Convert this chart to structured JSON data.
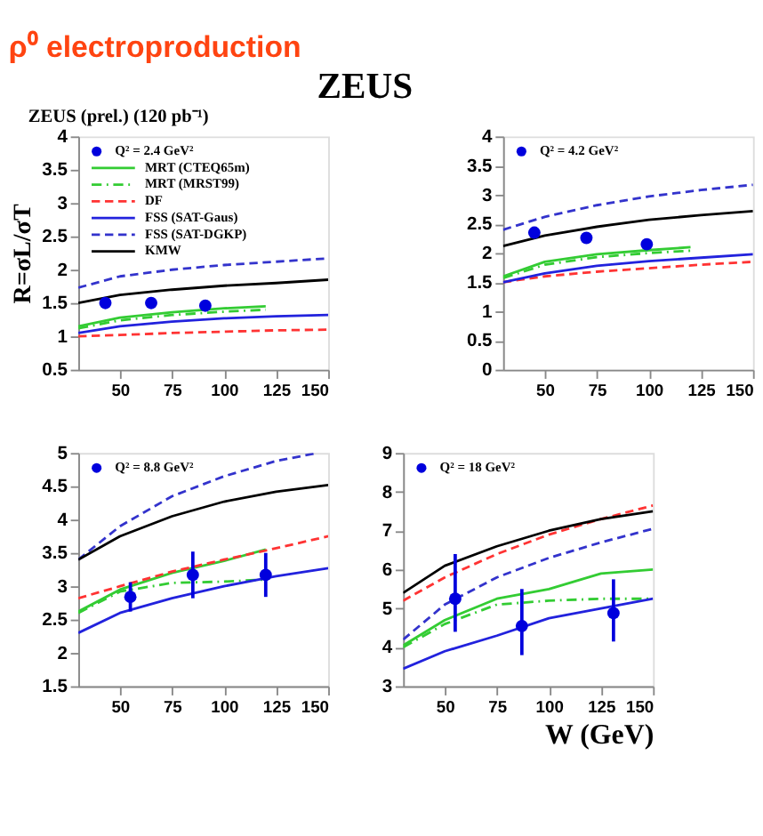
{
  "chart_data": [
    {
      "type": "line",
      "title": "ρ⁰ electroproduction",
      "annotations": [
        "ZEUS (prel.) (120 pb⁻¹)",
        "ZEUS"
      ],
      "ylabel": "R=σL/σT",
      "xlim": [
        30,
        150
      ],
      "xticks": [
        50,
        75,
        100,
        125,
        150
      ],
      "ylim": [
        0.5,
        4
      ],
      "yticks": [
        0.5,
        1,
        1.5,
        2,
        2.5,
        3,
        3.5,
        4
      ],
      "legend": "top left",
      "series": [
        {
          "name": "Q² = 2.4 GeV²",
          "type": "scatter",
          "marker": "circle",
          "color": "#0000dd",
          "x": [
            43,
            65,
            91
          ],
          "values": [
            1.5,
            1.5,
            1.46
          ]
        },
        {
          "name": "MRT (CTEQ65m)",
          "color": "#33cc33",
          "line_style": "solid",
          "x": [
            30,
            50,
            75,
            100,
            120
          ],
          "values": [
            1.15,
            1.28,
            1.36,
            1.42,
            1.45
          ]
        },
        {
          "name": "MRT (MRST99)",
          "color": "#33cc33",
          "line_style": "dotted",
          "x": [
            30,
            50,
            75,
            100,
            120
          ],
          "values": [
            1.12,
            1.24,
            1.32,
            1.37,
            1.4
          ]
        },
        {
          "name": "DF",
          "color": "#ff3333",
          "line_style": "dashed",
          "x": [
            30,
            50,
            75,
            100,
            125,
            150
          ],
          "values": [
            1.0,
            1.02,
            1.05,
            1.07,
            1.09,
            1.1
          ]
        },
        {
          "name": "FSS (SAT-Gaus)",
          "color": "#2222dd",
          "line_style": "solid",
          "x": [
            30,
            50,
            75,
            100,
            125,
            150
          ],
          "values": [
            1.05,
            1.15,
            1.22,
            1.27,
            1.3,
            1.32
          ]
        },
        {
          "name": "FSS (SAT-DGKP)",
          "color": "#3333cc",
          "line_style": "dashed",
          "x": [
            30,
            50,
            75,
            100,
            125,
            150
          ],
          "values": [
            1.73,
            1.9,
            2.0,
            2.07,
            2.12,
            2.17
          ]
        },
        {
          "name": "KMW",
          "color": "#000000",
          "line_style": "solid",
          "x": [
            30,
            50,
            75,
            100,
            125,
            150
          ],
          "values": [
            1.5,
            1.62,
            1.7,
            1.76,
            1.8,
            1.85
          ]
        }
      ]
    },
    {
      "type": "line",
      "xlim": [
        30,
        150
      ],
      "xticks": [
        50,
        75,
        100,
        125,
        150
      ],
      "ylim": [
        0,
        4
      ],
      "yticks": [
        0,
        0.5,
        1,
        1.5,
        2,
        2.5,
        3,
        3.5,
        4
      ],
      "legend": "top left",
      "series": [
        {
          "name": "Q² = 4.2 GeV²",
          "type": "scatter",
          "marker": "circle",
          "color": "#0000dd",
          "x": [
            45,
            70,
            99
          ],
          "values": [
            2.35,
            2.26,
            2.15
          ]
        },
        {
          "color": "#33cc33",
          "line_style": "solid",
          "x": [
            30,
            50,
            75,
            100,
            120
          ],
          "values": [
            1.6,
            1.85,
            1.98,
            2.05,
            2.1
          ]
        },
        {
          "color": "#33cc33",
          "line_style": "dotted",
          "x": [
            30,
            50,
            75,
            100,
            120
          ],
          "values": [
            1.57,
            1.8,
            1.93,
            2.0,
            2.04
          ]
        },
        {
          "color": "#ff3333",
          "line_style": "dashed",
          "x": [
            30,
            50,
            75,
            100,
            125,
            150
          ],
          "values": [
            1.5,
            1.6,
            1.68,
            1.74,
            1.8,
            1.85
          ]
        },
        {
          "color": "#2222dd",
          "line_style": "solid",
          "x": [
            30,
            50,
            75,
            100,
            125,
            150
          ],
          "values": [
            1.5,
            1.65,
            1.78,
            1.86,
            1.92,
            1.98
          ]
        },
        {
          "color": "#3333cc",
          "line_style": "dashed",
          "x": [
            30,
            50,
            75,
            100,
            125,
            150
          ],
          "values": [
            2.4,
            2.62,
            2.82,
            2.97,
            3.08,
            3.17
          ]
        },
        {
          "color": "#000000",
          "line_style": "solid",
          "x": [
            30,
            50,
            75,
            100,
            125,
            150
          ],
          "values": [
            2.12,
            2.3,
            2.45,
            2.57,
            2.65,
            2.72
          ]
        }
      ]
    },
    {
      "type": "line",
      "xlim": [
        30,
        150
      ],
      "xticks": [
        50,
        75,
        100,
        125,
        150
      ],
      "ylim": [
        1.5,
        5
      ],
      "yticks": [
        1.5,
        2,
        2.5,
        3,
        3.5,
        4,
        4.5,
        5
      ],
      "legend": "top left",
      "series": [
        {
          "name": "Q² = 8.8 GeV²",
          "type": "scatter",
          "marker": "circle",
          "color": "#0000dd",
          "x": [
            55,
            85,
            120
          ],
          "values": [
            2.84,
            3.17,
            3.17
          ],
          "errors": [
            0.22,
            0.35,
            0.33
          ]
        },
        {
          "color": "#33cc33",
          "line_style": "solid",
          "x": [
            30,
            50,
            75,
            100,
            120
          ],
          "values": [
            2.62,
            2.95,
            3.2,
            3.38,
            3.55
          ]
        },
        {
          "color": "#33cc33",
          "line_style": "dotted",
          "x": [
            30,
            50,
            75,
            100,
            120
          ],
          "values": [
            2.6,
            2.92,
            3.05,
            3.07,
            3.1
          ]
        },
        {
          "color": "#ff3333",
          "line_style": "dashed",
          "x": [
            30,
            50,
            75,
            100,
            125,
            150
          ],
          "values": [
            2.82,
            3.0,
            3.22,
            3.4,
            3.57,
            3.75
          ]
        },
        {
          "color": "#2222dd",
          "line_style": "solid",
          "x": [
            30,
            50,
            75,
            100,
            125,
            150
          ],
          "values": [
            2.3,
            2.6,
            2.82,
            3.0,
            3.15,
            3.27
          ]
        },
        {
          "color": "#3333cc",
          "line_style": "dashed",
          "x": [
            30,
            50,
            75,
            100,
            125,
            145
          ],
          "values": [
            3.4,
            3.9,
            4.35,
            4.65,
            4.88,
            5.0
          ]
        },
        {
          "color": "#000000",
          "line_style": "solid",
          "x": [
            30,
            50,
            75,
            100,
            125,
            150
          ],
          "values": [
            3.4,
            3.75,
            4.05,
            4.27,
            4.42,
            4.52
          ]
        }
      ]
    },
    {
      "type": "line",
      "xlabel": "W (GeV)",
      "xlim": [
        30,
        150
      ],
      "xticks": [
        50,
        75,
        100,
        125,
        150
      ],
      "ylim": [
        3,
        9
      ],
      "yticks": [
        3,
        4,
        5,
        6,
        7,
        8,
        9
      ],
      "legend": "top left",
      "series": [
        {
          "name": "Q² = 18 GeV²",
          "type": "scatter",
          "marker": "circle",
          "color": "#0000dd",
          "x": [
            55,
            87,
            131
          ],
          "values": [
            5.25,
            4.55,
            4.88
          ],
          "errors": [
            [
              4.4,
              6.4
            ],
            [
              3.8,
              5.5
            ],
            [
              4.15,
              5.75
            ]
          ]
        },
        {
          "color": "#33cc33",
          "line_style": "solid",
          "x": [
            30,
            50,
            75,
            100,
            125,
            150
          ],
          "values": [
            4.05,
            4.7,
            5.25,
            5.5,
            5.9,
            6.0
          ]
        },
        {
          "color": "#33cc33",
          "line_style": "dotted",
          "x": [
            30,
            50,
            75,
            100,
            125,
            150
          ],
          "values": [
            4.0,
            4.6,
            5.1,
            5.2,
            5.25,
            5.25
          ]
        },
        {
          "color": "#ff3333",
          "line_style": "dashed",
          "x": [
            30,
            50,
            75,
            100,
            125,
            150
          ],
          "values": [
            5.2,
            5.8,
            6.4,
            6.9,
            7.3,
            7.65
          ]
        },
        {
          "color": "#2222dd",
          "line_style": "solid",
          "x": [
            30,
            50,
            75,
            100,
            125,
            150
          ],
          "values": [
            3.45,
            3.9,
            4.3,
            4.75,
            5.0,
            5.25
          ]
        },
        {
          "color": "#3333cc",
          "line_style": "dashed",
          "x": [
            30,
            50,
            75,
            100,
            125,
            150
          ],
          "values": [
            4.2,
            5.1,
            5.8,
            6.3,
            6.7,
            7.05
          ]
        },
        {
          "color": "#000000",
          "line_style": "solid",
          "x": [
            30,
            50,
            75,
            100,
            125,
            150
          ],
          "values": [
            5.4,
            6.1,
            6.6,
            7.0,
            7.3,
            7.5
          ]
        }
      ]
    }
  ]
}
